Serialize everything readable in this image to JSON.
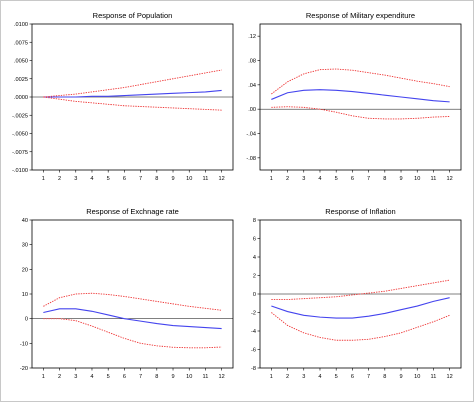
{
  "chart_data": [
    {
      "type": "line",
      "title": "Response of Population",
      "x": [
        1,
        2,
        3,
        4,
        5,
        6,
        7,
        8,
        9,
        10,
        11,
        12
      ],
      "ylim": [
        -0.01,
        0.01
      ],
      "yticks": [
        ".0100",
        ".0075",
        ".0050",
        ".0025",
        ".0000",
        "-.0025",
        "-.0050",
        "-.0075",
        "-.0100"
      ],
      "ytick_values": [
        0.01,
        0.0075,
        0.005,
        0.0025,
        0,
        -0.0025,
        -0.005,
        -0.0075,
        -0.01
      ],
      "zero_line": 0,
      "grid": false,
      "series": [
        {
          "role": "response",
          "color": "#4444ee",
          "values": [
            0,
            0,
            0,
            0.0001,
            0.0001,
            0.0002,
            0.0003,
            0.0004,
            0.0005,
            0.0006,
            0.0007,
            0.0009
          ]
        },
        {
          "role": "upper",
          "color": "#ee3333",
          "values": [
            0,
            0.0002,
            0.0004,
            0.0007,
            0.001,
            0.0013,
            0.0017,
            0.0021,
            0.0025,
            0.0029,
            0.0033,
            0.0037
          ]
        },
        {
          "role": "lower",
          "color": "#ee3333",
          "values": [
            0,
            -0.0003,
            -0.0006,
            -0.0008,
            -0.001,
            -0.0012,
            -0.0013,
            -0.0014,
            -0.0015,
            -0.0016,
            -0.0017,
            -0.0018
          ]
        }
      ]
    },
    {
      "type": "line",
      "title": "Response of Military expenditure",
      "x": [
        1,
        2,
        3,
        4,
        5,
        6,
        7,
        8,
        9,
        10,
        11,
        12
      ],
      "ylim": [
        -0.1,
        0.14
      ],
      "yticks": [
        ".12",
        ".08",
        ".04",
        ".00",
        "-.04",
        "-.08"
      ],
      "ytick_values": [
        0.12,
        0.08,
        0.04,
        0,
        -0.04,
        -0.08
      ],
      "zero_line": 0,
      "grid": false,
      "series": [
        {
          "role": "response",
          "color": "#4444ee",
          "values": [
            0.016,
            0.027,
            0.031,
            0.032,
            0.031,
            0.029,
            0.026,
            0.023,
            0.02,
            0.017,
            0.014,
            0.012
          ]
        },
        {
          "role": "upper",
          "color": "#ee3333",
          "values": [
            0.025,
            0.045,
            0.058,
            0.065,
            0.066,
            0.064,
            0.06,
            0.056,
            0.051,
            0.046,
            0.042,
            0.037
          ]
        },
        {
          "role": "lower",
          "color": "#ee3333",
          "values": [
            0.003,
            0.004,
            0.003,
            0,
            -0.005,
            -0.011,
            -0.015,
            -0.016,
            -0.016,
            -0.015,
            -0.013,
            -0.012
          ]
        }
      ]
    },
    {
      "type": "line",
      "title": "Response of Exchnage rate",
      "x": [
        1,
        2,
        3,
        4,
        5,
        6,
        7,
        8,
        9,
        10,
        11,
        12
      ],
      "ylim": [
        -20,
        40
      ],
      "yticks": [
        "40",
        "30",
        "20",
        "10",
        "0",
        "-10",
        "-20"
      ],
      "ytick_values": [
        40,
        30,
        20,
        10,
        0,
        -10,
        -20
      ],
      "zero_line": 0,
      "grid": false,
      "series": [
        {
          "role": "response",
          "color": "#4444ee",
          "values": [
            2.5,
            4,
            4,
            3,
            1.5,
            0,
            -1,
            -2,
            -2.8,
            -3.2,
            -3.6,
            -4
          ]
        },
        {
          "role": "upper",
          "color": "#ee3333",
          "values": [
            5,
            8.5,
            10,
            10.3,
            9.8,
            9,
            8,
            7,
            6,
            5,
            4.2,
            3.4
          ]
        },
        {
          "role": "lower",
          "color": "#ee3333",
          "values": [
            0,
            0,
            -0.8,
            -3,
            -5.5,
            -8,
            -10,
            -11,
            -11.6,
            -11.8,
            -11.8,
            -11.5
          ]
        }
      ]
    },
    {
      "type": "line",
      "title": "Response of Inflation",
      "x": [
        1,
        2,
        3,
        4,
        5,
        6,
        7,
        8,
        9,
        10,
        11,
        12
      ],
      "ylim": [
        -8,
        8
      ],
      "yticks": [
        "8",
        "6",
        "4",
        "2",
        "0",
        "-2",
        "-4",
        "-6",
        "-8"
      ],
      "ytick_values": [
        8,
        6,
        4,
        2,
        0,
        -2,
        -4,
        -6,
        -8
      ],
      "zero_line": 0,
      "grid": false,
      "series": [
        {
          "role": "response",
          "color": "#4444ee",
          "values": [
            -1.3,
            -1.9,
            -2.3,
            -2.5,
            -2.6,
            -2.6,
            -2.4,
            -2.1,
            -1.7,
            -1.3,
            -0.8,
            -0.4
          ]
        },
        {
          "role": "upper",
          "color": "#ee3333",
          "values": [
            -0.6,
            -0.6,
            -0.5,
            -0.4,
            -0.3,
            -0.1,
            0.1,
            0.3,
            0.6,
            0.9,
            1.2,
            1.5
          ]
        },
        {
          "role": "lower",
          "color": "#ee3333",
          "values": [
            -2,
            -3.4,
            -4.2,
            -4.7,
            -5,
            -5,
            -4.9,
            -4.6,
            -4.2,
            -3.6,
            -3,
            -2.3
          ]
        }
      ]
    }
  ]
}
